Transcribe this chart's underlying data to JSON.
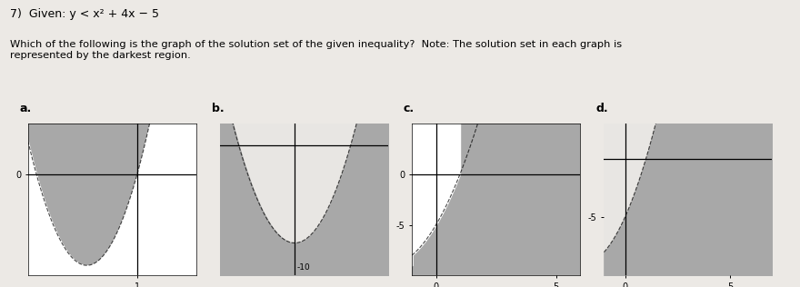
{
  "title_text": "7)  Given: y < x² + 4x − 5",
  "subtitle_text": "Which of the following is the graph of the solution set of the given inequality?  Note: The solution set in each graph is\nrepresented by the darkest region.",
  "shade_color": "#a8a8a8",
  "light_bg": "#e8e6e3",
  "fig_bg": "#ece9e5",
  "graphs": [
    {
      "label": "a.",
      "xlim": [
        -5.5,
        4.5
      ],
      "ylim": [
        -10,
        5
      ],
      "mode": "outside_parabola",
      "axis_hline": 0,
      "axis_vline": 1,
      "xticks": [
        1
      ],
      "xticklabels": [
        "1"
      ],
      "yticks": [
        0
      ],
      "yticklabels": [
        "0"
      ],
      "has_border": true
    },
    {
      "label": "b.",
      "xlim": [
        -6,
        3
      ],
      "ylim": [
        -12,
        2
      ],
      "mode": "inside_parabola",
      "axis_hline": 0,
      "axis_vline": -2,
      "xticks": [],
      "xticklabels": [],
      "yticks": [],
      "yticklabels": [],
      "vertex_label": "-10",
      "has_border": false
    },
    {
      "label": "c.",
      "xlim": [
        -1,
        6
      ],
      "ylim": [
        -10,
        5
      ],
      "mode": "arch_outside",
      "axis_hline": 0,
      "axis_vline": 0,
      "xticks": [
        0,
        5
      ],
      "xticklabels": [
        "0",
        "5"
      ],
      "yticks": [
        -5,
        0
      ],
      "yticklabels": [
        "-5",
        "0"
      ],
      "has_border": true
    },
    {
      "label": "d.",
      "xlim": [
        -1,
        7
      ],
      "ylim": [
        -10,
        3
      ],
      "mode": "below_parabola",
      "axis_hline": 0,
      "axis_vline": 0,
      "xticks": [
        0,
        5
      ],
      "xticklabels": [
        "0",
        "5"
      ],
      "yticks": [
        -5
      ],
      "yticklabels": [
        "-5"
      ],
      "has_border": false
    }
  ]
}
